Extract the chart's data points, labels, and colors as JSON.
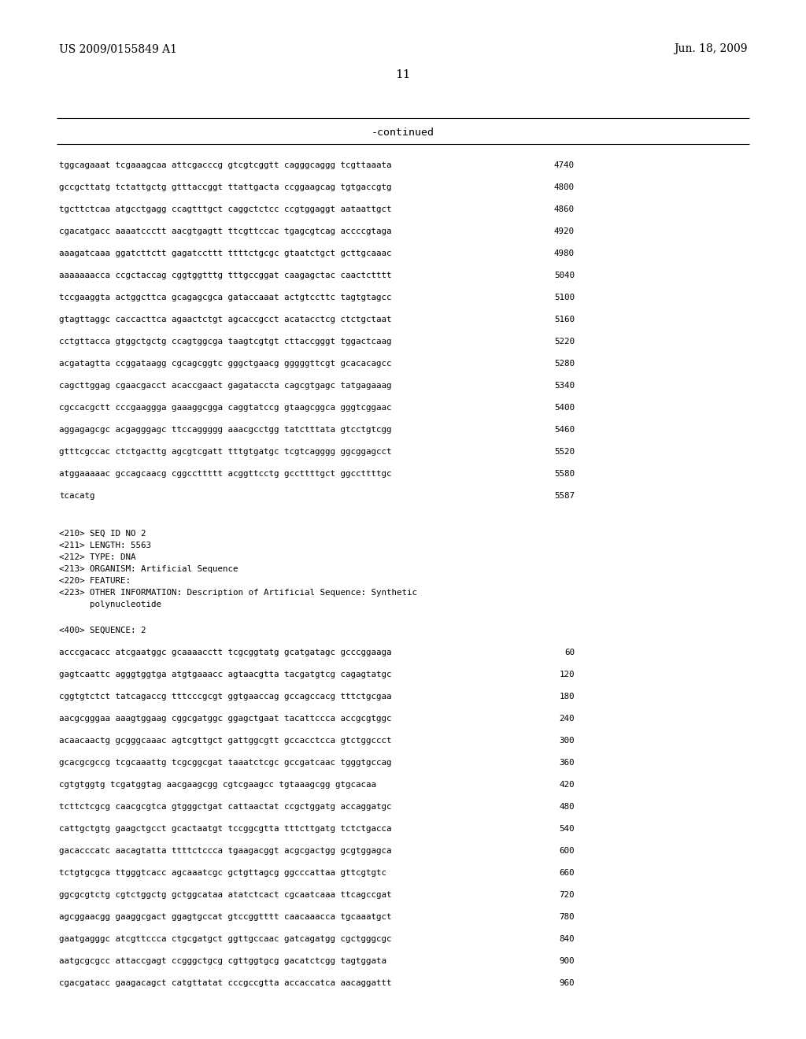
{
  "background_color": "#ffffff",
  "header_left": "US 2009/0155849 A1",
  "header_right": "Jun. 18, 2009",
  "page_number": "11",
  "continued_label": "-continued",
  "sequence_lines_top": [
    {
      "text": "tggcagaaat tcgaaagcaa attcgacccg gtcgtcggtt cagggcaggg tcgttaaata",
      "num": "4740"
    },
    {
      "text": "gccgcttatg tctattgctg gtttaccggt ttattgacta ccggaagcag tgtgaccgtg",
      "num": "4800"
    },
    {
      "text": "tgcttctcaa atgcctgagg ccagtttgct caggctctcc ccgtggaggt aataattgct",
      "num": "4860"
    },
    {
      "text": "cgacatgacc aaaatccctt aacgtgagtt ttcgttccac tgagcgtcag accccgtaga",
      "num": "4920"
    },
    {
      "text": "aaagatcaaa ggatcttctt gagatccttt ttttctgcgc gtaatctgct gcttgcaaac",
      "num": "4980"
    },
    {
      "text": "aaaaaaacca ccgctaccag cggtggtttg tttgccggat caagagctac caactctttt",
      "num": "5040"
    },
    {
      "text": "tccgaaggta actggcttca gcagagcgca gataccaaat actgtccttc tagtgtagcc",
      "num": "5100"
    },
    {
      "text": "gtagttaggc caccacttca agaactctgt agcaccgcct acatacctcg ctctgctaat",
      "num": "5160"
    },
    {
      "text": "cctgttacca gtggctgctg ccagtggcga taagtcgtgt cttaccgggt tggactcaag",
      "num": "5220"
    },
    {
      "text": "acgatagtta ccggataagg cgcagcggtc gggctgaacg gggggttcgt gcacacagcc",
      "num": "5280"
    },
    {
      "text": "cagcttggag cgaacgacct acaccgaact gagataccta cagcgtgagc tatgagaaag",
      "num": "5340"
    },
    {
      "text": "cgccacgctt cccgaaggga gaaaggcgga caggtatccg gtaagcggca gggtcggaac",
      "num": "5400"
    },
    {
      "text": "aggagagcgc acgagggagc ttccaggggg aaacgcctgg tatctttata gtcctgtcgg",
      "num": "5460"
    },
    {
      "text": "gtttcgccac ctctgacttg agcgtcgatt tttgtgatgc tcgtcagggg ggcggagcct",
      "num": "5520"
    },
    {
      "text": "atggaaaaac gccagcaacg cggccttttt acggttcctg gccttttgct ggccttttgc",
      "num": "5580"
    },
    {
      "text": "tcacatg",
      "num": "5587"
    }
  ],
  "metadata_lines": [
    "<210> SEQ ID NO 2",
    "<211> LENGTH: 5563",
    "<212> TYPE: DNA",
    "<213> ORGANISM: Artificial Sequence",
    "<220> FEATURE:",
    "<223> OTHER INFORMATION: Description of Artificial Sequence: Synthetic",
    "      polynucleotide"
  ],
  "sequence_label": "<400> SEQUENCE: 2",
  "sequence_lines_bottom": [
    {
      "text": "acccgacacc atcgaatggc gcaaaacctt tcgcggtatg gcatgatagc gcccggaaga",
      "num": "60"
    },
    {
      "text": "gagtcaattc agggtggtga atgtgaaacc agtaacgtta tacgatgtcg cagagtatgc",
      "num": "120"
    },
    {
      "text": "cggtgtctct tatcagaccg tttcccgcgt ggtgaaccag gccagccacg tttctgcgaa",
      "num": "180"
    },
    {
      "text": "aacgcgggaa aaagtggaag cggcgatggc ggagctgaat tacattccca accgcgtggc",
      "num": "240"
    },
    {
      "text": "acaacaactg gcgggcaaac agtcgttgct gattggcgtt gccacctcca gtctggccct",
      "num": "300"
    },
    {
      "text": "gcacgcgccg tcgcaaattg tcgcggcgat taaatctcgc gccgatcaac tgggtgccag",
      "num": "360"
    },
    {
      "text": "cgtgtggtg tcgatggtag aacgaagcgg cgtcgaagcc tgtaaagcgg gtgcacaa",
      "num": "420"
    },
    {
      "text": "tcttctcgcg caacgcgtca gtgggctgat cattaactat ccgctggatg accaggatgc",
      "num": "480"
    },
    {
      "text": "cattgctgtg gaagctgcct gcactaatgt tccggcgtta tttcttgatg tctctgacca",
      "num": "540"
    },
    {
      "text": "gacacccatc aacagtatta ttttctccca tgaagacggt acgcgactgg gcgtggagca",
      "num": "600"
    },
    {
      "text": "tctgtgcgca ttgggtcacc agcaaatcgc gctgttagcg ggcccattaa gttcgtgtc",
      "num": "660"
    },
    {
      "text": "ggcgcgtctg cgtctggctg gctggcataa atatctcact cgcaatcaaa ttcagccgat",
      "num": "720"
    },
    {
      "text": "agcggaacgg gaaggcgact ggagtgccat gtccggtttt caacaaacca tgcaaatgct",
      "num": "780"
    },
    {
      "text": "gaatgagggc atcgttccca ctgcgatgct ggttgccaac gatcagatgg cgctgggcgc",
      "num": "840"
    },
    {
      "text": "aatgcgcgcc attaccgagt ccgggctgcg cgttggtgcg gacatctcgg tagtggata",
      "num": "900"
    },
    {
      "text": "cgacgatacc gaagacagct catgttatat cccgccgtta accaccatca aacaggattt",
      "num": "960"
    }
  ]
}
